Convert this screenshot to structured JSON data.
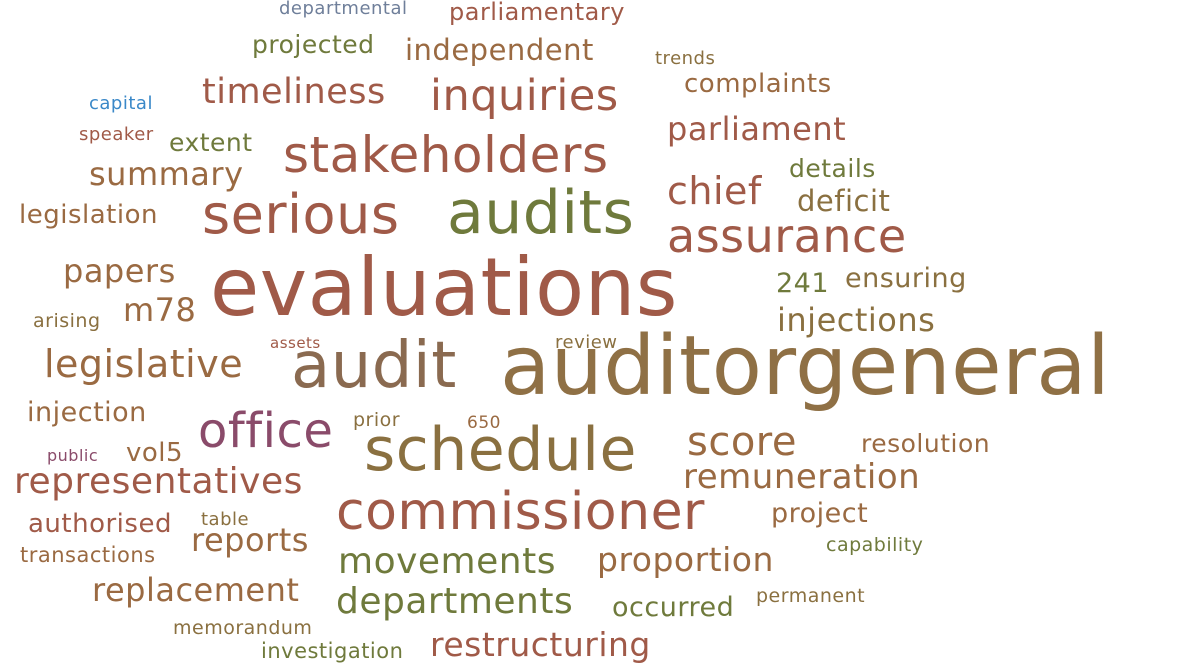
{
  "colors": {
    "brown": "#9a6a42",
    "rust": "#a05a48",
    "olive": "#6f7a3c",
    "olive_brown": "#8a7040",
    "gold_brown": "#8f7045",
    "mauve": "#8a4b6a",
    "blue": "#3a88c8",
    "slate": "#6f7f9a",
    "taupe": "#8a6a50"
  },
  "words": [
    {
      "text": "departmental",
      "color": "slate"
    },
    {
      "text": "parliamentary",
      "color": "rust"
    },
    {
      "text": "projected",
      "color": "olive"
    },
    {
      "text": "independent",
      "color": "brown"
    },
    {
      "text": "trends",
      "color": "olive_brown"
    },
    {
      "text": "capital",
      "color": "blue"
    },
    {
      "text": "timeliness",
      "color": "rust"
    },
    {
      "text": "inquiries",
      "color": "rust"
    },
    {
      "text": "complaints",
      "color": "brown"
    },
    {
      "text": "speaker",
      "color": "rust"
    },
    {
      "text": "extent",
      "color": "olive"
    },
    {
      "text": "parliament",
      "color": "rust"
    },
    {
      "text": "stakeholders",
      "color": "rust"
    },
    {
      "text": "summary",
      "color": "brown"
    },
    {
      "text": "details",
      "color": "olive"
    },
    {
      "text": "chief",
      "color": "rust"
    },
    {
      "text": "deficit",
      "color": "olive_brown"
    },
    {
      "text": "legislation",
      "color": "brown"
    },
    {
      "text": "serious",
      "color": "rust"
    },
    {
      "text": "audits",
      "color": "olive"
    },
    {
      "text": "assurance",
      "color": "rust"
    },
    {
      "text": "papers",
      "color": "brown"
    },
    {
      "text": "evaluations",
      "color": "rust"
    },
    {
      "text": "241",
      "color": "olive"
    },
    {
      "text": "ensuring",
      "color": "olive_brown"
    },
    {
      "text": "m78",
      "color": "brown"
    },
    {
      "text": "arising",
      "color": "olive_brown"
    },
    {
      "text": "injections",
      "color": "olive_brown"
    },
    {
      "text": "assets",
      "color": "rust"
    },
    {
      "text": "review",
      "color": "olive_brown"
    },
    {
      "text": "legislative",
      "color": "brown"
    },
    {
      "text": "audit",
      "color": "taupe"
    },
    {
      "text": "auditorgeneral",
      "color": "gold_brown"
    },
    {
      "text": "injection",
      "color": "brown"
    },
    {
      "text": "prior",
      "color": "olive_brown"
    },
    {
      "text": "650",
      "color": "brown"
    },
    {
      "text": "office",
      "color": "mauve"
    },
    {
      "text": "schedule",
      "color": "olive_brown"
    },
    {
      "text": "score",
      "color": "brown"
    },
    {
      "text": "resolution",
      "color": "brown"
    },
    {
      "text": "public",
      "color": "mauve"
    },
    {
      "text": "vol5",
      "color": "brown"
    },
    {
      "text": "representatives",
      "color": "rust"
    },
    {
      "text": "remuneration",
      "color": "brown"
    },
    {
      "text": "authorised",
      "color": "rust"
    },
    {
      "text": "table",
      "color": "olive_brown"
    },
    {
      "text": "reports",
      "color": "brown"
    },
    {
      "text": "commissioner",
      "color": "rust"
    },
    {
      "text": "project",
      "color": "brown"
    },
    {
      "text": "transactions",
      "color": "brown"
    },
    {
      "text": "capability",
      "color": "olive"
    },
    {
      "text": "movements",
      "color": "olive"
    },
    {
      "text": "proportion",
      "color": "brown"
    },
    {
      "text": "replacement",
      "color": "brown"
    },
    {
      "text": "departments",
      "color": "olive"
    },
    {
      "text": "occurred",
      "color": "olive"
    },
    {
      "text": "permanent",
      "color": "olive_brown"
    },
    {
      "text": "memorandum",
      "color": "olive_brown"
    },
    {
      "text": "investigation",
      "color": "olive"
    },
    {
      "text": "restructuring",
      "color": "rust"
    }
  ]
}
